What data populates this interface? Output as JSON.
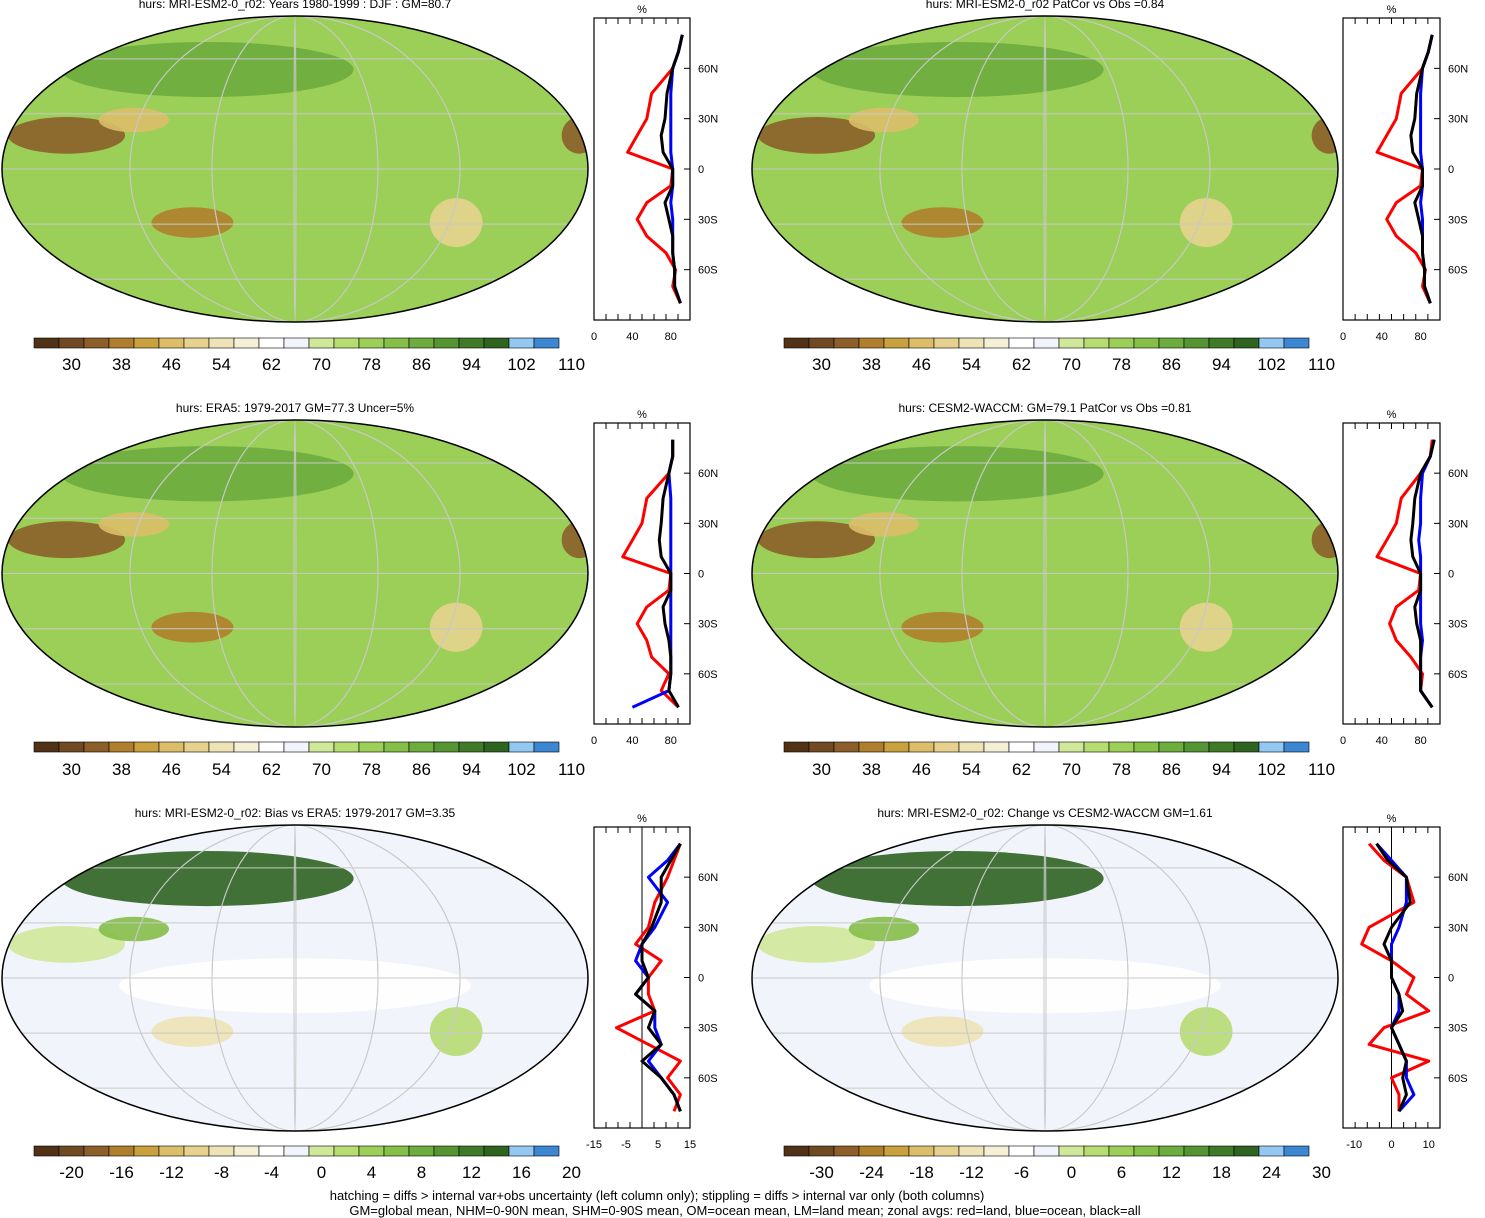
{
  "colors": {
    "abs": [
      "#523216",
      "#6f4a22",
      "#8c5f2a",
      "#b07f2e",
      "#c9a13f",
      "#dcbe6a",
      "#e7d18f",
      "#eee3b6",
      "#f5efd6",
      "#ffffff",
      "#f2f4fb",
      "#cfe89a",
      "#b6dc72",
      "#9ccf58",
      "#85bf48",
      "#6dac3e",
      "#559433",
      "#3f7a28",
      "#2e6320",
      "#93c8f2",
      "#3d86d2"
    ],
    "land_line": "#ff0000",
    "ocean_line": "#0000ff",
    "all_line": "#000000",
    "grid": "#c9c9c9"
  },
  "panels": [
    {
      "id": "mri-clim",
      "title": "hurs: MRI-ESM2-0_r02: Years 1980-1999 : DJF : GM=80.7",
      "colorbar": [
        "30",
        "38",
        "46",
        "54",
        "62",
        "70",
        "78",
        "86",
        "94",
        "102",
        "110"
      ],
      "zonal": {
        "unit": "%",
        "xticks": [
          "0",
          "40",
          "80"
        ],
        "xrange": [
          0,
          100
        ],
        "lat_labels": [
          "60N",
          "30N",
          "0",
          "30S",
          "60S"
        ]
      },
      "hatch": true,
      "stipple": true
    },
    {
      "id": "mri-patcor",
      "title": "hurs: MRI-ESM2-0_r02 PatCor vs Obs =0.84",
      "colorbar": [
        "30",
        "38",
        "46",
        "54",
        "62",
        "70",
        "78",
        "86",
        "94",
        "102",
        "110"
      ],
      "zonal": {
        "unit": "%",
        "xticks": [
          "0",
          "40",
          "80"
        ],
        "xrange": [
          0,
          100
        ],
        "lat_labels": [
          "60N",
          "30N",
          "0",
          "30S",
          "60S"
        ]
      },
      "hatch": false,
      "stipple": true
    },
    {
      "id": "era5",
      "title": "hurs: ERA5: 1979-2017 GM=77.3 Uncer=5%",
      "colorbar": [
        "30",
        "38",
        "46",
        "54",
        "62",
        "70",
        "78",
        "86",
        "94",
        "102",
        "110"
      ],
      "zonal": {
        "unit": "%",
        "xticks": [
          "0",
          "40",
          "80"
        ],
        "xrange": [
          0,
          100
        ],
        "lat_labels": [
          "60N",
          "30N",
          "0",
          "30S",
          "60S"
        ]
      },
      "hatch": true,
      "stipple": true
    },
    {
      "id": "cesm2",
      "title": "hurs: CESM2-WACCM: GM=79.1 PatCor vs Obs =0.81",
      "colorbar": [
        "30",
        "38",
        "46",
        "54",
        "62",
        "70",
        "78",
        "86",
        "94",
        "102",
        "110"
      ],
      "zonal": {
        "unit": "%",
        "xticks": [
          "0",
          "40",
          "80"
        ],
        "xrange": [
          0,
          100
        ],
        "lat_labels": [
          "60N",
          "30N",
          "0",
          "30S",
          "60S"
        ]
      },
      "hatch": false,
      "stipple": true
    },
    {
      "id": "bias",
      "title": "hurs: MRI-ESM2-0_r02: Bias vs ERA5: 1979-2017 GM=3.35",
      "colorbar": [
        "-20",
        "-16",
        "-12",
        "-8",
        "-4",
        "0",
        "4",
        "8",
        "12",
        "16",
        "20"
      ],
      "zonal": {
        "unit": "%",
        "xticks": [
          "-15",
          "-5",
          "5",
          "15"
        ],
        "xrange": [
          -15,
          15
        ],
        "lat_labels": [
          "60N",
          "30N",
          "0",
          "30S",
          "60S"
        ]
      },
      "hatch": true,
      "stipple": true
    },
    {
      "id": "change",
      "title": "hurs: MRI-ESM2-0_r02: Change vs CESM2-WACCM GM=1.61",
      "colorbar": [
        "-30",
        "-24",
        "-18",
        "-12",
        "-6",
        "0",
        "6",
        "12",
        "18",
        "24",
        "30"
      ],
      "zonal": {
        "unit": "%",
        "xticks": [
          "-10",
          "0",
          "10"
        ],
        "xrange": [
          -13,
          13
        ],
        "lat_labels": [
          "60N",
          "30N",
          "0",
          "30S",
          "60S"
        ]
      },
      "hatch": false,
      "stipple": true
    }
  ],
  "footer": {
    "line1": "hatching = diffs > internal var+obs uncertainty (left column only); stippling = diffs > internal var only (both columns)",
    "line2": "GM=global mean, NHM=0-90N mean, SHM=0-90S mean, OM=ocean mean, LM=land mean; zonal avgs: red=land, blue=ocean, black=all"
  },
  "chart_data": [
    {
      "type": "line",
      "title": "hurs: MRI-ESM2-0_r02: Years 1980-1999 : DJF : GM=80.7",
      "xlabel": "%",
      "ylabel": "",
      "xlim": [
        0,
        100
      ],
      "ylim": [
        -90,
        90
      ],
      "y": [
        80,
        70,
        60,
        45,
        30,
        20,
        10,
        0,
        -10,
        -20,
        -30,
        -40,
        -50,
        -60,
        -70,
        -80
      ],
      "series": [
        {
          "name": "land",
          "color": "#ff0000",
          "values": [
            92,
            88,
            82,
            60,
            55,
            45,
            35,
            82,
            80,
            55,
            45,
            55,
            75,
            85,
            82,
            90
          ]
        },
        {
          "name": "ocean",
          "color": "#0000ff",
          "values": [
            92,
            88,
            82,
            80,
            80,
            80,
            80,
            82,
            82,
            80,
            82,
            82,
            82,
            84,
            84,
            90
          ]
        },
        {
          "name": "all",
          "color": "#000000",
          "values": [
            92,
            88,
            82,
            76,
            74,
            70,
            72,
            82,
            82,
            74,
            78,
            82,
            82,
            84,
            84,
            90
          ]
        }
      ]
    },
    {
      "type": "line",
      "title": "hurs: MRI-ESM2-0_r02 PatCor vs Obs =0.84",
      "xlabel": "%",
      "ylabel": "",
      "xlim": [
        0,
        100
      ],
      "ylim": [
        -90,
        90
      ],
      "y": [
        80,
        70,
        60,
        45,
        30,
        20,
        10,
        0,
        -10,
        -20,
        -30,
        -40,
        -50,
        -60,
        -70,
        -80
      ],
      "series": [
        {
          "name": "land",
          "color": "#ff0000",
          "values": [
            92,
            88,
            82,
            60,
            55,
            45,
            35,
            82,
            80,
            55,
            45,
            55,
            75,
            85,
            82,
            90
          ]
        },
        {
          "name": "ocean",
          "color": "#0000ff",
          "values": [
            92,
            88,
            82,
            80,
            80,
            80,
            80,
            82,
            82,
            80,
            82,
            82,
            82,
            84,
            84,
            90
          ]
        },
        {
          "name": "all",
          "color": "#000000",
          "values": [
            92,
            88,
            82,
            76,
            74,
            70,
            72,
            82,
            82,
            74,
            78,
            82,
            82,
            84,
            84,
            90
          ]
        }
      ]
    },
    {
      "type": "line",
      "title": "hurs: ERA5: 1979-2017 GM=77.3 Uncer=5%",
      "xlabel": "%",
      "ylabel": "",
      "xlim": [
        0,
        100
      ],
      "ylim": [
        -90,
        90
      ],
      "y": [
        80,
        70,
        60,
        45,
        30,
        20,
        10,
        0,
        -10,
        -20,
        -30,
        -40,
        -50,
        -60,
        -70,
        -80
      ],
      "series": [
        {
          "name": "land",
          "color": "#ff0000",
          "values": [
            82,
            82,
            78,
            55,
            50,
            40,
            30,
            80,
            78,
            55,
            45,
            55,
            60,
            78,
            70,
            88
          ]
        },
        {
          "name": "ocean",
          "color": "#0000ff",
          "values": [
            82,
            82,
            78,
            80,
            80,
            80,
            80,
            80,
            80,
            80,
            80,
            80,
            80,
            80,
            78,
            40
          ]
        },
        {
          "name": "all",
          "color": "#000000",
          "values": [
            82,
            82,
            78,
            72,
            70,
            68,
            70,
            80,
            80,
            72,
            74,
            78,
            80,
            80,
            78,
            88
          ]
        }
      ]
    },
    {
      "type": "line",
      "title": "hurs: CESM2-WACCM: GM=79.1 PatCor vs Obs =0.81",
      "xlabel": "%",
      "ylabel": "",
      "xlim": [
        0,
        100
      ],
      "ylim": [
        -90,
        90
      ],
      "y": [
        80,
        70,
        60,
        45,
        30,
        20,
        10,
        0,
        -10,
        -20,
        -30,
        -40,
        -50,
        -60,
        -70,
        -80
      ],
      "series": [
        {
          "name": "land",
          "color": "#ff0000",
          "values": [
            92,
            90,
            80,
            60,
            55,
            45,
            35,
            80,
            78,
            55,
            48,
            55,
            70,
            82,
            80,
            92
          ]
        },
        {
          "name": "ocean",
          "color": "#0000ff",
          "values": [
            94,
            90,
            82,
            80,
            80,
            78,
            80,
            80,
            80,
            80,
            80,
            82,
            80,
            80,
            80,
            92
          ]
        },
        {
          "name": "all",
          "color": "#000000",
          "values": [
            94,
            90,
            80,
            74,
            72,
            70,
            72,
            80,
            80,
            74,
            76,
            80,
            80,
            80,
            80,
            92
          ]
        }
      ]
    },
    {
      "type": "line",
      "title": "hurs: MRI-ESM2-0_r02: Bias vs ERA5: 1979-2017 GM=3.35",
      "xlabel": "%",
      "ylabel": "",
      "xlim": [
        -15,
        15
      ],
      "ylim": [
        -90,
        90
      ],
      "y": [
        80,
        70,
        60,
        45,
        30,
        20,
        10,
        0,
        -10,
        -20,
        -30,
        -40,
        -50,
        -60,
        -70,
        -80
      ],
      "series": [
        {
          "name": "land",
          "color": "#ff0000",
          "values": [
            12,
            10,
            8,
            4,
            2,
            -2,
            6,
            2,
            2,
            4,
            -8,
            2,
            12,
            8,
            12,
            10
          ]
        },
        {
          "name": "ocean",
          "color": "#0000ff",
          "values": [
            12,
            8,
            2,
            8,
            4,
            0,
            -2,
            2,
            -2,
            4,
            4,
            6,
            2,
            6,
            10,
            12
          ]
        },
        {
          "name": "all",
          "color": "#000000",
          "values": [
            12,
            9,
            6,
            6,
            3,
            0,
            0,
            2,
            -2,
            4,
            2,
            6,
            0,
            6,
            10,
            12
          ]
        }
      ]
    },
    {
      "type": "line",
      "title": "hurs: MRI-ESM2-0_r02: Change vs CESM2-WACCM GM=1.61",
      "xlabel": "%",
      "ylabel": "",
      "xlim": [
        -13,
        13
      ],
      "ylim": [
        -90,
        90
      ],
      "y": [
        80,
        70,
        60,
        45,
        30,
        20,
        10,
        0,
        -10,
        -20,
        -30,
        -40,
        -50,
        -60,
        -70,
        -80
      ],
      "series": [
        {
          "name": "land",
          "color": "#ff0000",
          "values": [
            -6,
            -2,
            4,
            6,
            -6,
            -8,
            0,
            6,
            4,
            10,
            -2,
            -6,
            10,
            0,
            2,
            2
          ]
        },
        {
          "name": "ocean",
          "color": "#0000ff",
          "values": [
            -4,
            0,
            4,
            4,
            2,
            0,
            0,
            0,
            2,
            2,
            0,
            2,
            4,
            4,
            6,
            2
          ]
        },
        {
          "name": "all",
          "color": "#000000",
          "values": [
            -4,
            -1,
            4,
            5,
            0,
            -2,
            0,
            0,
            2,
            3,
            0,
            2,
            4,
            3,
            4,
            2
          ]
        }
      ]
    }
  ]
}
